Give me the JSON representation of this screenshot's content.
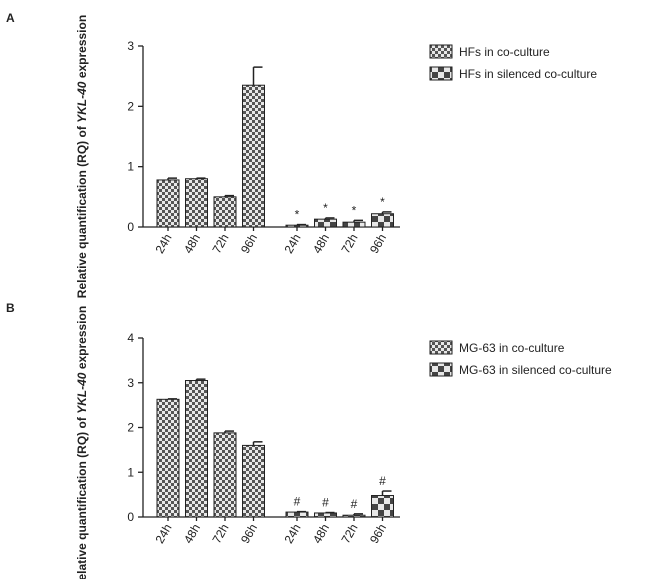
{
  "chart_data": [
    {
      "type": "bar",
      "panel": "A",
      "ylabel": [
        "Relative quantification (RQ) of ",
        "YKL-40",
        " expression"
      ],
      "categories": [
        "24h",
        "48h",
        "72h",
        "96h",
        "24h",
        "48h",
        "72h",
        "96h"
      ],
      "ylim": [
        0,
        3
      ],
      "yticks": [
        0,
        1,
        2,
        3
      ],
      "series": [
        {
          "name": "HFs in co-culture",
          "color": "#555555",
          "pattern": "fine",
          "values": [
            0.78,
            0.8,
            0.5,
            2.35,
            null,
            null,
            null,
            null
          ],
          "errors": [
            0.03,
            0.01,
            0.02,
            0.3,
            null,
            null,
            null,
            null
          ]
        },
        {
          "name": "HFs in silenced co-culture",
          "color": "#444444",
          "pattern": "checker",
          "values": [
            null,
            null,
            null,
            null,
            0.03,
            0.13,
            0.08,
            0.22
          ],
          "errors": [
            null,
            null,
            null,
            null,
            0.01,
            0.02,
            0.03,
            0.03
          ],
          "markers": [
            null,
            null,
            null,
            null,
            "*",
            "*",
            "*",
            "*"
          ]
        }
      ]
    },
    {
      "type": "bar",
      "panel": "B",
      "ylabel": [
        "Relative quantification (RQ) of ",
        "YKL-40",
        " expression"
      ],
      "categories": [
        "24h",
        "48h",
        "72h",
        "96h",
        "24h",
        "48h",
        "72h",
        "96h"
      ],
      "ylim": [
        0,
        4
      ],
      "yticks": [
        0,
        1,
        2,
        3,
        4
      ],
      "series": [
        {
          "name": "MG-63 in co-culture",
          "color": "#555555",
          "pattern": "fine",
          "values": [
            2.63,
            3.05,
            1.88,
            1.6,
            null,
            null,
            null,
            null
          ],
          "errors": [
            0.01,
            0.03,
            0.04,
            0.08,
            null,
            null,
            null,
            null
          ]
        },
        {
          "name": "MG-63 in silenced co-culture",
          "color": "#444444",
          "pattern": "checker",
          "values": [
            null,
            null,
            null,
            null,
            0.11,
            0.09,
            0.04,
            0.48
          ],
          "errors": [
            null,
            null,
            null,
            null,
            0.01,
            0.01,
            0.03,
            0.1
          ],
          "markers": [
            null,
            null,
            null,
            null,
            "#",
            "#",
            "#",
            "#"
          ]
        }
      ]
    }
  ]
}
